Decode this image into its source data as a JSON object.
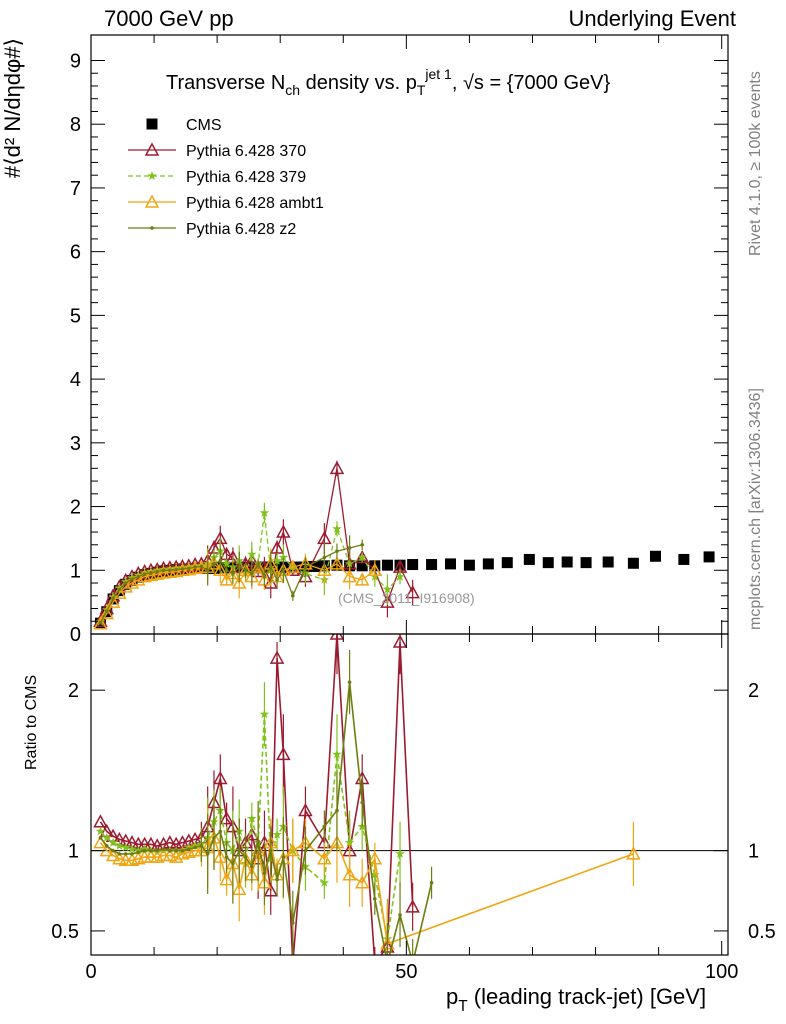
{
  "header": {
    "left": "7000 GeV pp",
    "right": "Underlying Event"
  },
  "side_labels": {
    "rivet": "Rivet 4.1.0, ≥ 100k events",
    "mcplots": "mcplots.cern.ch [arXiv:1306.3436]"
  },
  "title": "Transverse N_ch density vs. p_T^{jet 1}, √s = {7000 GeV}",
  "watermark": "(CMS_2011_I916908)",
  "chart_data": [
    {
      "type": "scatter",
      "panel": "main",
      "ylabel": "#⟨d² N/dηdφ#⟩",
      "xlim": [
        0,
        101
      ],
      "ylim": [
        0,
        9.4
      ],
      "yticks": [
        0,
        1,
        2,
        3,
        4,
        5,
        6,
        7,
        8,
        9
      ],
      "legend": [
        "CMS",
        "Pythia 6.428 370",
        "Pythia 6.428 379",
        "Pythia 6.428 ambt1",
        "Pythia 6.428 z2"
      ],
      "legend_position": "top-left",
      "colors": {
        "CMS": "#000000",
        "370": "#9b1b30",
        "379": "#7fc31c",
        "ambt1": "#f0a513",
        "z2": "#6e7d10"
      },
      "series": [
        {
          "name": "CMS",
          "marker": "square",
          "x": [
            1.5,
            2.5,
            3.5,
            4.5,
            5.5,
            6.5,
            7.5,
            8.5,
            9.5,
            10.5,
            11.5,
            12.5,
            13.5,
            14.5,
            15.5,
            16.5,
            17.5,
            18.5,
            19.5,
            20.5,
            21.5,
            22.5,
            23.5,
            24.5,
            25.5,
            26.5,
            27.5,
            28.5,
            29.5,
            30.5,
            31.5,
            32.5,
            33.5,
            34.5,
            35.5,
            37,
            39,
            41,
            43,
            45,
            47,
            49,
            51,
            54,
            57,
            60,
            63,
            66,
            69.5,
            72.5,
            75.5,
            78.5,
            82,
            86,
            89.5,
            94,
            98
          ],
          "y": [
            0.17,
            0.35,
            0.55,
            0.68,
            0.78,
            0.84,
            0.89,
            0.93,
            0.95,
            0.97,
            0.99,
            1.0,
            1.01,
            1.02,
            1.02,
            1.03,
            1.03,
            1.03,
            1.03,
            1.04,
            1.04,
            1.04,
            1.05,
            1.04,
            1.05,
            1.04,
            1.05,
            1.05,
            1.05,
            1.05,
            1.04,
            1.05,
            1.05,
            1.06,
            1.06,
            1.07,
            1.08,
            1.07,
            1.07,
            1.07,
            1.08,
            1.08,
            1.09,
            1.09,
            1.1,
            1.08,
            1.1,
            1.12,
            1.17,
            1.12,
            1.13,
            1.12,
            1.13,
            1.11,
            1.22,
            1.17,
            1.21
          ]
        },
        {
          "name": "Pythia 6.428 370",
          "marker": "triangle-open",
          "x": [
            1.5,
            2.5,
            3.5,
            4.5,
            5.5,
            6.5,
            7.5,
            8.5,
            9.5,
            10.5,
            11.5,
            12.5,
            13.5,
            14.5,
            15.5,
            16.5,
            17.5,
            18.5,
            19.5,
            20.5,
            21.5,
            22.5,
            23.5,
            24.5,
            25.5,
            26.5,
            27.5,
            28.5,
            29.5,
            30.5,
            32,
            34,
            37,
            39,
            41,
            43,
            45,
            47,
            49,
            51
          ],
          "y": [
            0.2,
            0.4,
            0.6,
            0.74,
            0.84,
            0.9,
            0.95,
            0.98,
            1.0,
            1.01,
            1.03,
            1.04,
            1.05,
            1.06,
            1.07,
            1.09,
            1.1,
            1.15,
            1.35,
            1.5,
            1.25,
            1.2,
            1.05,
            1.1,
            1.15,
            0.98,
            1.05,
            0.8,
            1.35,
            1.6,
            1.0,
            0.9,
            1.5,
            2.6,
            1.1,
            1.2,
            1.0,
            0.5,
            1.05,
            0.65
          ]
        },
        {
          "name": "Pythia 6.428 379",
          "marker": "star",
          "x": [
            1.5,
            2.5,
            3.5,
            4.5,
            5.5,
            6.5,
            7.5,
            8.5,
            9.5,
            10.5,
            11.5,
            12.5,
            13.5,
            14.5,
            15.5,
            16.5,
            17.5,
            18.5,
            19.5,
            20.5,
            21.5,
            22.5,
            23.5,
            24.5,
            25.5,
            26.5,
            27.5,
            28.5,
            29.5,
            30.5,
            32,
            34,
            37,
            39,
            41,
            43,
            45,
            47,
            49
          ],
          "y": [
            0.19,
            0.38,
            0.58,
            0.72,
            0.82,
            0.88,
            0.92,
            0.96,
            0.98,
            1.0,
            1.01,
            1.02,
            1.03,
            1.04,
            1.05,
            1.06,
            1.07,
            1.1,
            1.2,
            1.3,
            1.1,
            1.05,
            1.15,
            0.95,
            1.25,
            1.1,
            1.9,
            1.0,
            1.15,
            1.2,
            1.05,
            0.95,
            0.85,
            1.65,
            1.1,
            1.2,
            0.9,
            0.7,
            0.9
          ]
        },
        {
          "name": "Pythia 6.428 ambt1",
          "marker": "triangle-open",
          "x": [
            1.5,
            2.5,
            3.5,
            4.5,
            5.5,
            6.5,
            7.5,
            8.5,
            9.5,
            10.5,
            11.5,
            12.5,
            13.5,
            14.5,
            15.5,
            16.5,
            17.5,
            18.5,
            19.5,
            20.5,
            21.5,
            22.5,
            23.5,
            24.5,
            25.5,
            26.5,
            27.5,
            28.5,
            29.5,
            30.5,
            32,
            34,
            37,
            39,
            41,
            43,
            45
          ],
          "y": [
            0.16,
            0.32,
            0.5,
            0.64,
            0.74,
            0.8,
            0.85,
            0.9,
            0.92,
            0.94,
            0.96,
            0.97,
            0.98,
            1.0,
            1.01,
            1.03,
            1.04,
            1.05,
            1.1,
            1.0,
            0.85,
            0.95,
            0.8,
            1.0,
            0.9,
            1.05,
            0.85,
            1.1,
            0.9,
            1.0,
            1.05,
            1.1,
            1.0,
            1.1,
            0.9,
            0.85,
            1.0
          ]
        },
        {
          "name": "Pythia 6.428 z2",
          "marker": "dot",
          "x": [
            1.5,
            2.5,
            3.5,
            4.5,
            5.5,
            6.5,
            7.5,
            8.5,
            9.5,
            10.5,
            11.5,
            12.5,
            13.5,
            14.5,
            15.5,
            16.5,
            17.5,
            18.5,
            19.5,
            20.5,
            21.5,
            22.5,
            23.5,
            24.5,
            25.5,
            26.5,
            27.5,
            28.5,
            29.5,
            30.5,
            32,
            34,
            37,
            39,
            41,
            43
          ],
          "y": [
            0.18,
            0.36,
            0.56,
            0.7,
            0.8,
            0.86,
            0.9,
            0.94,
            0.96,
            0.98,
            1.0,
            1.0,
            1.01,
            1.02,
            1.03,
            1.05,
            1.06,
            1.0,
            1.1,
            1.15,
            1.0,
            0.95,
            1.05,
            1.0,
            0.95,
            1.1,
            0.9,
            1.05,
            0.85,
            1.0,
            0.6,
            1.05,
            1.2,
            1.3,
            1.35,
            1.4
          ]
        }
      ]
    },
    {
      "type": "line",
      "panel": "ratio",
      "ylabel": "Ratio to CMS",
      "xlabel": "p_T (leading track-jet) [GeV]",
      "xlim": [
        0,
        101
      ],
      "ylim": [
        0.35,
        2.35
      ],
      "yticks": [
        0.5,
        1,
        2
      ],
      "xticks": [
        0,
        50,
        100
      ],
      "reference_line": 1,
      "series": [
        {
          "name": "Pythia 6.428 370",
          "x": [
            1.5,
            2.5,
            3.5,
            4.5,
            5.5,
            6.5,
            7.5,
            8.5,
            9.5,
            10.5,
            11.5,
            12.5,
            13.5,
            14.5,
            15.5,
            16.5,
            17.5,
            18.5,
            19.5,
            20.5,
            21.5,
            22.5,
            23.5,
            24.5,
            25.5,
            26.5,
            27.5,
            28.5,
            29.5,
            30.5,
            32,
            34,
            37,
            39,
            41,
            43,
            45,
            47,
            49,
            51
          ],
          "y": [
            1.18,
            1.12,
            1.09,
            1.07,
            1.06,
            1.05,
            1.04,
            1.04,
            1.04,
            1.03,
            1.04,
            1.05,
            1.04,
            1.05,
            1.06,
            1.07,
            1.08,
            1.15,
            1.3,
            1.45,
            1.2,
            1.15,
            1.0,
            1.05,
            1.1,
            0.95,
            1.05,
            0.75,
            2.2,
            1.6,
            0.3,
            1.25,
            1.05,
            2.35,
            1.0,
            1.45,
            0.3,
            0.4,
            2.3,
            0.65
          ]
        },
        {
          "name": "Pythia 6.428 379",
          "x": [
            1.5,
            2.5,
            3.5,
            4.5,
            5.5,
            6.5,
            7.5,
            8.5,
            9.5,
            10.5,
            11.5,
            12.5,
            13.5,
            14.5,
            15.5,
            16.5,
            17.5,
            18.5,
            19.5,
            20.5,
            21.5,
            22.5,
            23.5,
            24.5,
            25.5,
            26.5,
            27.5,
            28.5,
            29.5,
            30.5,
            32,
            34,
            37,
            39,
            41,
            43,
            45,
            47,
            49
          ],
          "y": [
            1.12,
            1.08,
            1.05,
            1.03,
            1.02,
            1.01,
            1.0,
            1.01,
            1.0,
            0.99,
            1.0,
            1.0,
            1.0,
            1.0,
            1.02,
            1.03,
            1.04,
            1.08,
            1.18,
            1.25,
            1.05,
            1.0,
            1.12,
            0.92,
            1.2,
            1.05,
            1.85,
            0.95,
            1.1,
            1.15,
            1.0,
            0.9,
            0.8,
            1.6,
            1.05,
            1.15,
            0.85,
            0.45,
            0.98
          ]
        },
        {
          "name": "Pythia 6.428 ambt1",
          "x": [
            1.5,
            2.5,
            3.5,
            4.5,
            5.5,
            6.5,
            7.5,
            8.5,
            9.5,
            10.5,
            11.5,
            12.5,
            13.5,
            14.5,
            15.5,
            16.5,
            17.5,
            18.5,
            19.5,
            20.5,
            21.5,
            22.5,
            23.5,
            24.5,
            25.5,
            26.5,
            27.5,
            28.5,
            29.5,
            30.5,
            32,
            34,
            37,
            39,
            41,
            43,
            45,
            47,
            86
          ],
          "y": [
            1.05,
            1.0,
            0.97,
            0.95,
            0.94,
            0.94,
            0.95,
            0.96,
            0.96,
            0.96,
            0.97,
            0.97,
            0.96,
            0.98,
            0.99,
            1.0,
            1.0,
            1.02,
            1.08,
            0.96,
            0.82,
            0.92,
            0.76,
            0.95,
            0.85,
            1.0,
            0.8,
            1.05,
            0.85,
            0.95,
            1.0,
            1.05,
            0.95,
            1.05,
            0.85,
            0.8,
            0.95,
            0.42,
            0.98
          ]
        },
        {
          "name": "Pythia 6.428 z2",
          "x": [
            1.5,
            2.5,
            3.5,
            4.5,
            5.5,
            6.5,
            7.5,
            8.5,
            9.5,
            10.5,
            11.5,
            12.5,
            13.5,
            14.5,
            15.5,
            16.5,
            17.5,
            18.5,
            19.5,
            20.5,
            21.5,
            22.5,
            23.5,
            24.5,
            25.5,
            26.5,
            27.5,
            28.5,
            29.5,
            30.5,
            32,
            34,
            37,
            39,
            41,
            43,
            45,
            47,
            49,
            51,
            54
          ],
          "y": [
            1.08,
            1.03,
            1.0,
            0.98,
            0.98,
            0.98,
            0.99,
            1.0,
            1.0,
            1.0,
            1.01,
            1.0,
            1.0,
            1.0,
            1.01,
            1.02,
            1.03,
            0.98,
            1.08,
            1.12,
            0.96,
            0.92,
            1.0,
            0.96,
            0.9,
            1.06,
            0.86,
            1.0,
            0.82,
            0.96,
            0.55,
            1.0,
            1.15,
            1.25,
            2.05,
            1.3,
            0.7,
            0.3,
            0.6,
            0.3,
            0.8
          ]
        }
      ]
    }
  ]
}
